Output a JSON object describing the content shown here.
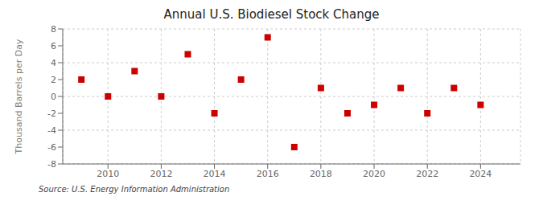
{
  "chart_data": {
    "type": "scatter",
    "title": "Annual U.S. Biodiesel Stock Change",
    "ylabel": "Thousand Barrels per Day",
    "annotations": [
      "Source: U.S. Energy Information Administration"
    ],
    "x": [
      2009,
      2010,
      2011,
      2012,
      2013,
      2014,
      2015,
      2016,
      2017,
      2018,
      2019,
      2020,
      2021,
      2022,
      2023,
      2024
    ],
    "values": [
      2.0,
      0.0,
      3.0,
      0.0,
      5.0,
      -2.0,
      2.0,
      7.0,
      -6.0,
      1.0,
      -2.0,
      -1.0,
      1.0,
      -2.0,
      1.0,
      -1.0
    ],
    "color": "#cc0000",
    "marker": "square",
    "xlim": [
      2008.3,
      2025.5
    ],
    "xticks": [
      2010,
      2012,
      2014,
      2016,
      2018,
      2020,
      2022,
      2024
    ],
    "ylim": [
      -8,
      8
    ],
    "yticks": [
      -8,
      -6,
      -4,
      -2,
      0,
      2,
      4,
      6,
      8
    ],
    "grid": true
  }
}
